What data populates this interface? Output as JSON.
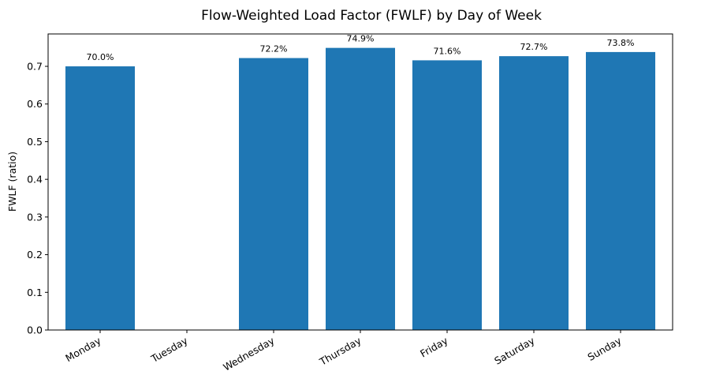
{
  "chart_data": {
    "type": "bar",
    "title": "Flow-Weighted Load Factor (FWLF) by Day of Week",
    "xlabel": "",
    "ylabel": "FWLF (ratio)",
    "categories": [
      "Monday",
      "Tuesday",
      "Wednesday",
      "Thursday",
      "Friday",
      "Saturday",
      "Sunday"
    ],
    "values": [
      0.7,
      null,
      0.722,
      0.749,
      0.716,
      0.727,
      0.738
    ],
    "data_labels": [
      "70.0%",
      "",
      "72.2%",
      "74.9%",
      "71.6%",
      "72.7%",
      "73.8%"
    ],
    "ylim": [
      0,
      0.786
    ],
    "yticks": [
      "0.0",
      "0.1",
      "0.2",
      "0.3",
      "0.4",
      "0.5",
      "0.6",
      "0.7"
    ],
    "grid": false,
    "legend": "none",
    "bar_color": "#1f77b4"
  }
}
